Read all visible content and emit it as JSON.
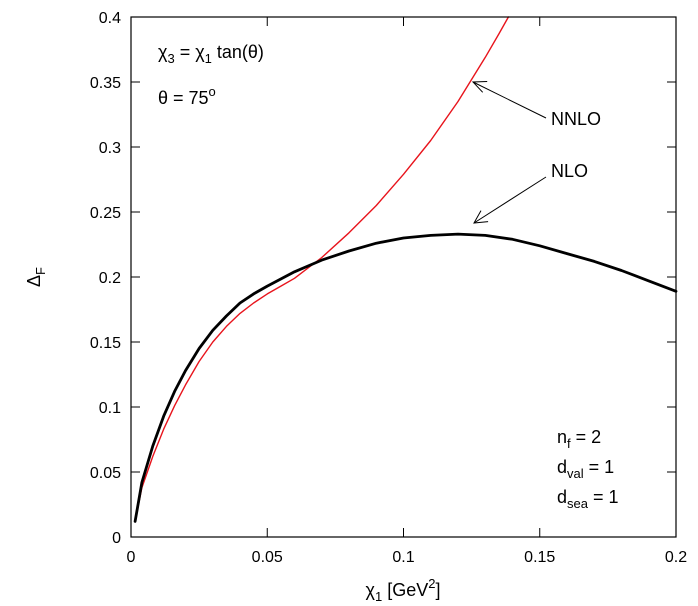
{
  "chart_data": {
    "type": "line",
    "xlabel": {
      "sym": "χ",
      "sub": "1",
      "unit_pre": " [GeV",
      "sup": "2",
      "unit_post": "]"
    },
    "ylabel": {
      "sym": "Δ",
      "sub": "F"
    },
    "xlim": [
      0,
      0.2
    ],
    "ylim": [
      0,
      0.4
    ],
    "x_ticks": [
      0,
      0.05,
      0.1,
      0.15,
      0.2
    ],
    "x_tick_labels": [
      "0",
      "0.05",
      "0.1",
      "0.15",
      "0.2"
    ],
    "y_ticks": [
      0,
      0.05,
      0.1,
      0.15,
      0.2,
      0.25,
      0.3,
      0.35,
      0.4
    ],
    "y_tick_labels": [
      "0",
      "0.05",
      "0.1",
      "0.15",
      "0.2",
      "0.25",
      "0.3",
      "0.35",
      "0.4"
    ],
    "grid": false,
    "series": [
      {
        "name": "NNLO",
        "color": "#e8141c",
        "points": [
          [
            0.0015,
            0.012
          ],
          [
            0.004,
            0.038
          ],
          [
            0.008,
            0.062
          ],
          [
            0.012,
            0.083
          ],
          [
            0.016,
            0.101
          ],
          [
            0.02,
            0.117
          ],
          [
            0.025,
            0.135
          ],
          [
            0.03,
            0.15
          ],
          [
            0.035,
            0.162
          ],
          [
            0.04,
            0.172
          ],
          [
            0.045,
            0.18
          ],
          [
            0.05,
            0.187
          ],
          [
            0.055,
            0.193
          ],
          [
            0.06,
            0.199
          ],
          [
            0.07,
            0.215
          ],
          [
            0.08,
            0.234
          ],
          [
            0.09,
            0.255
          ],
          [
            0.1,
            0.279
          ],
          [
            0.11,
            0.305
          ],
          [
            0.12,
            0.335
          ],
          [
            0.13,
            0.369
          ],
          [
            0.135,
            0.387
          ],
          [
            0.1385,
            0.4
          ]
        ]
      },
      {
        "name": "NLO",
        "color": "#000000",
        "points": [
          [
            0.0015,
            0.012
          ],
          [
            0.004,
            0.042
          ],
          [
            0.008,
            0.07
          ],
          [
            0.012,
            0.093
          ],
          [
            0.016,
            0.112
          ],
          [
            0.02,
            0.128
          ],
          [
            0.025,
            0.145
          ],
          [
            0.03,
            0.159
          ],
          [
            0.035,
            0.17
          ],
          [
            0.04,
            0.18
          ],
          [
            0.045,
            0.187
          ],
          [
            0.05,
            0.193
          ],
          [
            0.06,
            0.204
          ],
          [
            0.07,
            0.213
          ],
          [
            0.08,
            0.22
          ],
          [
            0.09,
            0.226
          ],
          [
            0.1,
            0.23
          ],
          [
            0.11,
            0.232
          ],
          [
            0.12,
            0.233
          ],
          [
            0.13,
            0.232
          ],
          [
            0.14,
            0.229
          ],
          [
            0.15,
            0.224
          ],
          [
            0.16,
            0.218
          ],
          [
            0.17,
            0.212
          ],
          [
            0.18,
            0.205
          ],
          [
            0.19,
            0.197
          ],
          [
            0.2,
            0.189
          ]
        ]
      }
    ],
    "annotations": {
      "formula": {
        "a": "χ",
        "a_sub": "3",
        "eq": " = ",
        "b": "χ",
        "b_sub": "1",
        "rest": " tan(θ)"
      },
      "theta": {
        "text": "θ = 75",
        "sup": "o"
      },
      "nnlo_label": "NNLO",
      "nlo_label": "NLO",
      "nf": {
        "base": "n",
        "sub": "f",
        "rest": " = 2"
      },
      "dval": {
        "base": "d",
        "sub": "val",
        "rest": " = 1"
      },
      "dsea": {
        "base": "d",
        "sub": "sea",
        "rest": " = 1"
      }
    }
  }
}
